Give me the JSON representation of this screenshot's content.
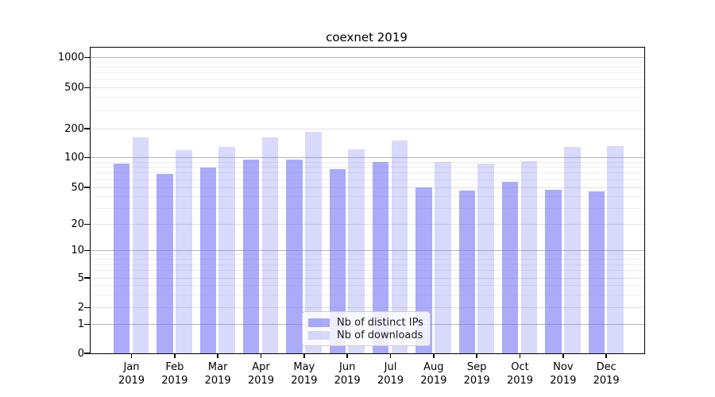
{
  "title": "coexnet 2019",
  "chart_data": {
    "type": "bar",
    "title": "coexnet 2019",
    "categories": [
      "Jan 2019",
      "Feb 2019",
      "Mar 2019",
      "Apr 2019",
      "May 2019",
      "Jun 2019",
      "Jul 2019",
      "Aug 2019",
      "Sep 2019",
      "Oct 2019",
      "Nov 2019",
      "Dec 2019"
    ],
    "x_tick_months": [
      "Jan",
      "Feb",
      "Mar",
      "Apr",
      "May",
      "Jun",
      "Jul",
      "Aug",
      "Sep",
      "Oct",
      "Nov",
      "Dec"
    ],
    "x_tick_year": "2019",
    "series": [
      {
        "name": "Nb of distinct IPs",
        "display_color": "#a8a8f4",
        "base_color_rgb": [
          120,
          120,
          245
        ],
        "alpha": 0.62,
        "values": [
          88,
          68,
          80,
          96,
          95,
          76,
          91,
          50,
          46,
          57,
          47,
          45
        ]
      },
      {
        "name": "Nb of downloads",
        "display_color": "#d9d9f9",
        "base_color_rgb": [
          120,
          120,
          245
        ],
        "alpha": 0.28,
        "values": [
          163,
          119,
          129,
          162,
          187,
          123,
          150,
          91,
          87,
          93,
          129,
          133
        ]
      }
    ],
    "yscale": "symlog",
    "yticks": [
      0,
      1,
      2,
      5,
      10,
      20,
      50,
      100,
      200,
      500,
      1000
    ],
    "ylim": [
      0,
      1300
    ],
    "xlabel": "",
    "ylabel": "",
    "grid": true,
    "grid_major_power_color": "#b5b5b5",
    "grid_labeled_color": "#e2e2e2",
    "grid_minor_color": "#ededed",
    "legend_position": "lower center"
  },
  "legend": {
    "items": [
      {
        "label": "Nb of distinct IPs"
      },
      {
        "label": "Nb of downloads"
      }
    ]
  }
}
